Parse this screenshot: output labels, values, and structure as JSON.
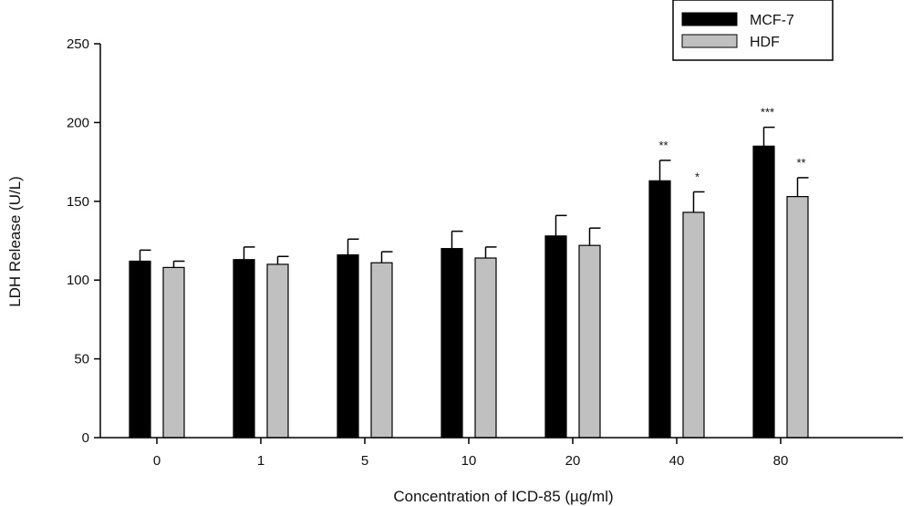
{
  "chart_data": {
    "type": "bar",
    "title": "",
    "xlabel": "Concentration of ICD-85 (µg/ml)",
    "ylabel": "LDH Release (U/L)",
    "categories": [
      "0",
      "1",
      "5",
      "10",
      "20",
      "40",
      "80"
    ],
    "ylim": [
      0,
      250
    ],
    "yticks": [
      "0",
      "50",
      "100",
      "150",
      "200",
      "250"
    ],
    "legend_position": "top-right",
    "grid": false,
    "series": [
      {
        "name": "MCF-7",
        "color": "#000000",
        "values": [
          112,
          113,
          116,
          120,
          128,
          163,
          185
        ],
        "errors": [
          7,
          8,
          10,
          11,
          13,
          13,
          12
        ],
        "significance": [
          "",
          "",
          "",
          "",
          "",
          "**",
          "***"
        ]
      },
      {
        "name": "HDF",
        "color": "#c0c0c0",
        "values": [
          108,
          110,
          111,
          114,
          122,
          143,
          153
        ],
        "errors": [
          4,
          5,
          7,
          7,
          11,
          13,
          12
        ],
        "significance": [
          "",
          "",
          "",
          "",
          "",
          "*",
          "**"
        ]
      }
    ]
  }
}
